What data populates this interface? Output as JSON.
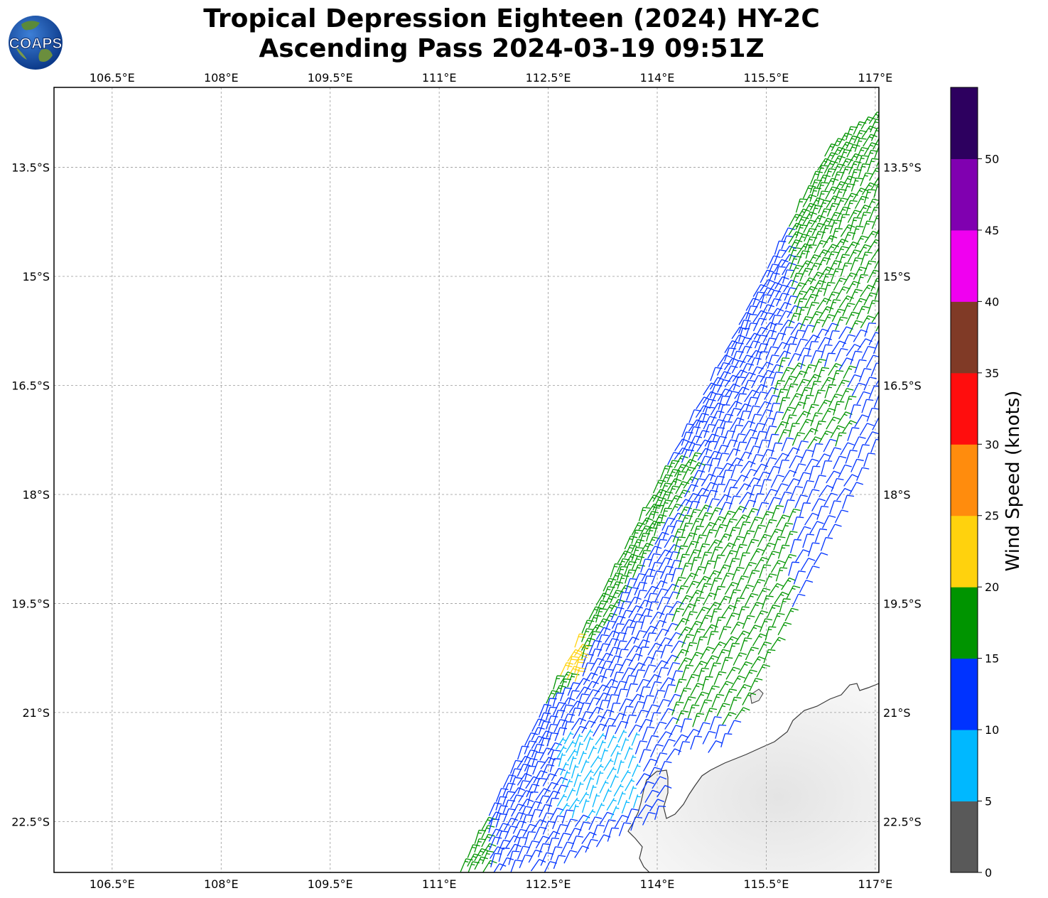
{
  "title_line1": "Tropical Depression Eighteen (2024) HY-2C",
  "title_line2": "Ascending Pass 2024-03-19 09:51Z",
  "logo": {
    "text": "COAPS",
    "icon": "globe-icon"
  },
  "map": {
    "lon_range": [
      105.7,
      117.05
    ],
    "lat_range": [
      -23.2,
      -12.4
    ],
    "lon_ticks": [
      "106.5°E",
      "108°E",
      "109.5°E",
      "111°E",
      "112.5°E",
      "114°E",
      "115.5°E",
      "117°E"
    ],
    "lon_tick_values": [
      106.5,
      108,
      109.5,
      111,
      112.5,
      114,
      115.5,
      117
    ],
    "lat_ticks": [
      "13.5°S",
      "15°S",
      "16.5°S",
      "18°S",
      "19.5°S",
      "21°S",
      "22.5°S"
    ],
    "lat_tick_values": [
      -13.5,
      -15,
      -16.5,
      -18,
      -19.5,
      -21,
      -22.5
    ],
    "gridlines": true,
    "land_label": "Australia (NW coast, gray satellite imagery)"
  },
  "colorbar": {
    "label": "Wind Speed (knots)",
    "ticks": [
      "0",
      "5",
      "10",
      "15",
      "20",
      "25",
      "30",
      "35",
      "40",
      "45",
      "50"
    ],
    "bins": [
      {
        "min": 0,
        "max": 5,
        "color": "#595959"
      },
      {
        "min": 5,
        "max": 10,
        "color": "#00b8ff"
      },
      {
        "min": 10,
        "max": 15,
        "color": "#0033ff"
      },
      {
        "min": 15,
        "max": 20,
        "color": "#009400"
      },
      {
        "min": 20,
        "max": 25,
        "color": "#ffd20d"
      },
      {
        "min": 25,
        "max": 30,
        "color": "#ff8c0d"
      },
      {
        "min": 30,
        "max": 35,
        "color": "#ff0d0d"
      },
      {
        "min": 35,
        "max": 40,
        "color": "#803a26"
      },
      {
        "min": 40,
        "max": 45,
        "color": "#f000f0"
      },
      {
        "min": 45,
        "max": 50,
        "color": "#8000b0"
      },
      {
        "min": 50,
        "max": 55,
        "color": "#2d005f"
      }
    ]
  },
  "chart_data": {
    "type": "wind-barbs",
    "swath_description": "Ascending scatterometer swath from SW (111.2°E, 23.2°S) to NE (117°E, 12.4°S); winds mostly 10–20 kt, a band of 20–25 kt near 112.5°E 19.5–20.5°S, 5–10 kt near 113°E 21.5–22.5°S",
    "sample_barbs": [
      {
        "lon": 116.5,
        "lat": -13.0,
        "speed_kt": 17
      },
      {
        "lon": 115.5,
        "lat": -14.5,
        "speed_kt": 12
      },
      {
        "lon": 114.8,
        "lat": -16.0,
        "speed_kt": 13
      },
      {
        "lon": 115.8,
        "lat": -16.6,
        "speed_kt": 17
      },
      {
        "lon": 113.8,
        "lat": -18.2,
        "speed_kt": 16
      },
      {
        "lon": 112.8,
        "lat": -19.6,
        "speed_kt": 22
      },
      {
        "lon": 112.6,
        "lat": -20.3,
        "speed_kt": 22
      },
      {
        "lon": 113.3,
        "lat": -21.7,
        "speed_kt": 8
      },
      {
        "lon": 112.2,
        "lat": -22.5,
        "speed_kt": 12
      },
      {
        "lon": 111.3,
        "lat": -23.0,
        "speed_kt": 16
      }
    ]
  }
}
